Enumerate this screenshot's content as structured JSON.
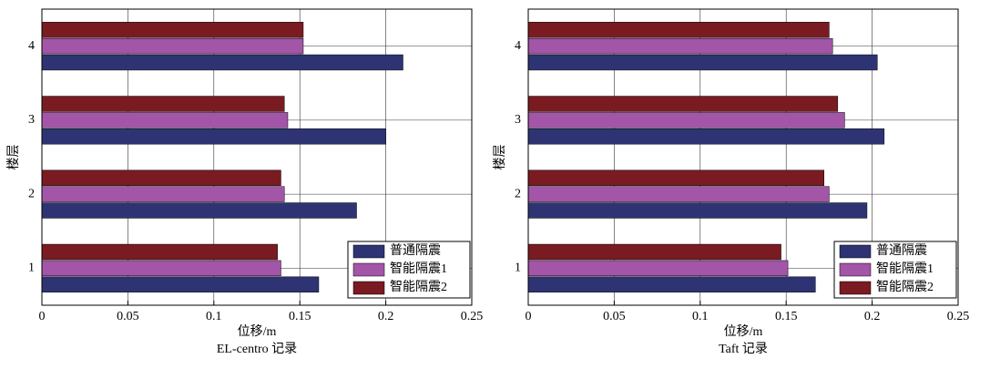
{
  "chart_data": [
    {
      "type": "bar",
      "orientation": "horizontal",
      "title": "EL-centro 记录",
      "xlabel": "位移/m",
      "ylabel": "楼层",
      "categories": [
        "1",
        "2",
        "3",
        "4"
      ],
      "series": [
        {
          "name": "普通隔震",
          "color": "#2e3473",
          "values": [
            0.161,
            0.183,
            0.2,
            0.21
          ]
        },
        {
          "name": "智能隔震1",
          "color": "#a355a8",
          "values": [
            0.139,
            0.141,
            0.143,
            0.152
          ]
        },
        {
          "name": "智能隔震2",
          "color": "#7a1b22",
          "values": [
            0.137,
            0.139,
            0.141,
            0.152
          ]
        }
      ],
      "xlim": [
        0,
        0.25
      ],
      "xticks": [
        0,
        0.05,
        0.1,
        0.15,
        0.2,
        0.25
      ],
      "grid": true,
      "legend": "lower right"
    },
    {
      "type": "bar",
      "orientation": "horizontal",
      "title": "Taft 记录",
      "xlabel": "位移/m",
      "ylabel": "楼层",
      "categories": [
        "1",
        "2",
        "3",
        "4"
      ],
      "series": [
        {
          "name": "普通隔震",
          "color": "#2e3473",
          "values": [
            0.167,
            0.197,
            0.207,
            0.203
          ]
        },
        {
          "name": "智能隔震1",
          "color": "#a355a8",
          "values": [
            0.151,
            0.175,
            0.184,
            0.177
          ]
        },
        {
          "name": "智能隔震2",
          "color": "#7a1b22",
          "values": [
            0.147,
            0.172,
            0.18,
            0.175
          ]
        }
      ],
      "xlim": [
        0,
        0.25
      ],
      "xticks": [
        0,
        0.05,
        0.1,
        0.15,
        0.2,
        0.25
      ],
      "grid": true,
      "legend": "lower right"
    }
  ]
}
